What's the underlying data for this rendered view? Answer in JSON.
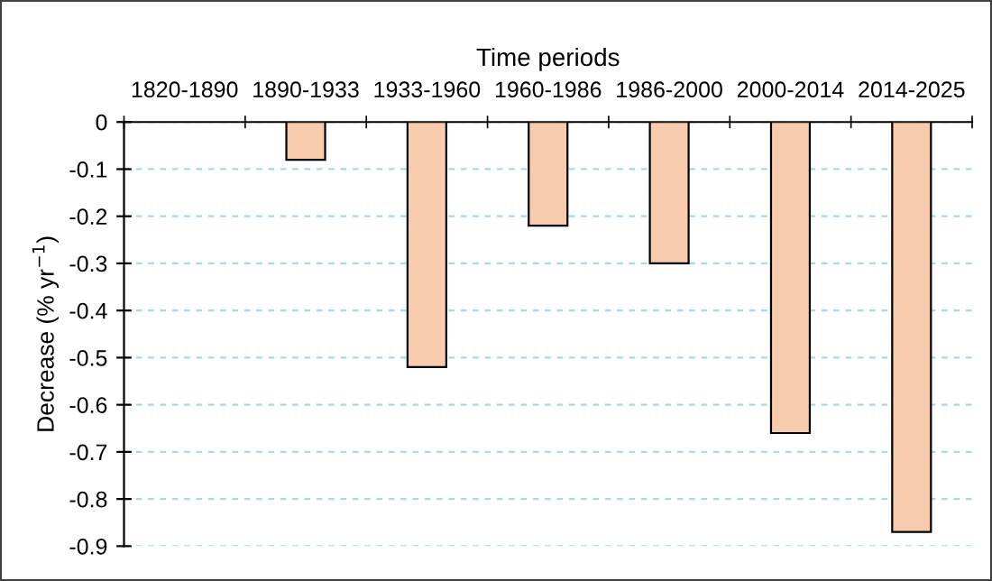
{
  "chart_data": {
    "type": "bar",
    "xlabel": "Time periods",
    "ylabel": "Decrease (% yr$^{−1}$)",
    "categories": [
      "1820-1890",
      "1890-1933",
      "1933-1960",
      "1960-1986",
      "1986-2000",
      "2000-2014",
      "2014-2025"
    ],
    "values": [
      null,
      -0.08,
      -0.52,
      -0.22,
      -0.3,
      -0.66,
      -0.87
    ],
    "color": "#f8cbad",
    "ylim": [
      -0.9,
      0
    ],
    "yticks": [
      0,
      -0.1,
      -0.2,
      -0.3,
      -0.4,
      -0.5,
      -0.6,
      -0.7,
      -0.8,
      -0.9
    ],
    "grid": "y"
  }
}
